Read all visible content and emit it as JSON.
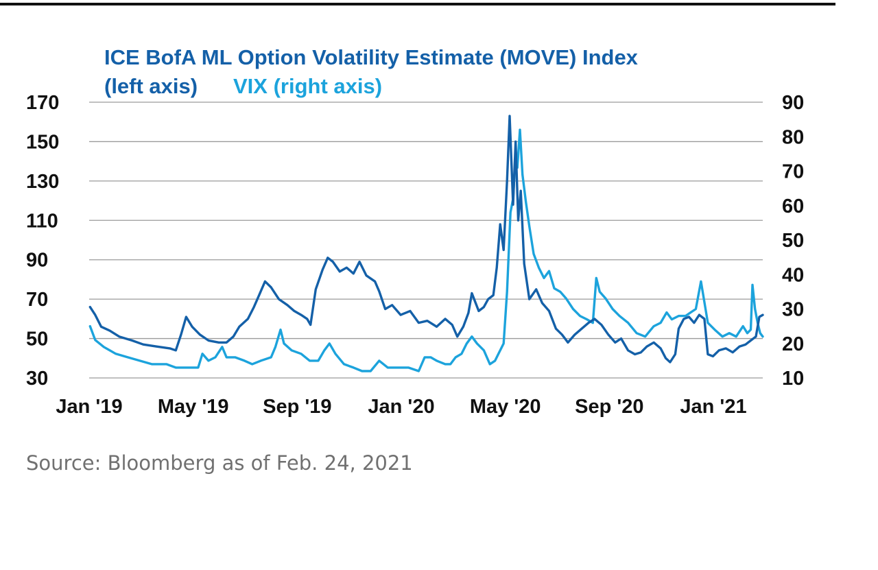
{
  "chart_data": {
    "type": "line",
    "title": "ICE BofA ML Option Volatility Estimate (MOVE) Index",
    "legend": [
      {
        "text": "(left axis)",
        "color": "#1460a8"
      },
      {
        "text": "VIX (right axis)",
        "color": "#1ca3dc"
      }
    ],
    "x_ticks": [
      "Jan '19",
      "May '19",
      "Sep '19",
      "Jan '20",
      "May '20",
      "Sep '20",
      "Jan '21"
    ],
    "y_left": {
      "min": 30,
      "max": 170,
      "ticks": [
        30,
        50,
        70,
        90,
        110,
        130,
        150,
        170
      ]
    },
    "y_right": {
      "min": 10,
      "max": 90,
      "ticks": [
        10,
        20,
        30,
        40,
        50,
        60,
        70,
        80,
        90
      ]
    },
    "grid": true,
    "x_range": [
      "2019-01-01",
      "2021-02-24"
    ],
    "series": [
      {
        "name": "ICE BofA ML Option Volatility Estimate (MOVE) Index",
        "axis": "left",
        "color": "#1460a8",
        "points": [
          [
            "2019-01-02",
            66
          ],
          [
            "2019-01-08",
            62
          ],
          [
            "2019-01-15",
            56
          ],
          [
            "2019-01-25",
            54
          ],
          [
            "2019-02-05",
            51
          ],
          [
            "2019-02-20",
            49
          ],
          [
            "2019-03-05",
            47
          ],
          [
            "2019-03-20",
            46
          ],
          [
            "2019-04-05",
            45
          ],
          [
            "2019-04-12",
            44
          ],
          [
            "2019-04-18",
            52
          ],
          [
            "2019-04-24",
            61
          ],
          [
            "2019-05-01",
            56
          ],
          [
            "2019-05-10",
            52
          ],
          [
            "2019-05-20",
            49
          ],
          [
            "2019-06-01",
            48
          ],
          [
            "2019-06-10",
            48
          ],
          [
            "2019-06-18",
            51
          ],
          [
            "2019-06-25",
            56
          ],
          [
            "2019-07-05",
            60
          ],
          [
            "2019-07-12",
            66
          ],
          [
            "2019-07-18",
            72
          ],
          [
            "2019-07-25",
            79
          ],
          [
            "2019-08-01",
            76
          ],
          [
            "2019-08-10",
            70
          ],
          [
            "2019-08-20",
            67
          ],
          [
            "2019-08-28",
            64
          ],
          [
            "2019-09-05",
            62
          ],
          [
            "2019-09-12",
            60
          ],
          [
            "2019-09-16",
            57
          ],
          [
            "2019-09-22",
            75
          ],
          [
            "2019-09-30",
            85
          ],
          [
            "2019-10-06",
            91
          ],
          [
            "2019-10-12",
            89
          ],
          [
            "2019-10-20",
            84
          ],
          [
            "2019-10-28",
            86
          ],
          [
            "2019-11-05",
            83
          ],
          [
            "2019-11-12",
            89
          ],
          [
            "2019-11-20",
            82
          ],
          [
            "2019-11-30",
            79
          ],
          [
            "2019-12-05",
            74
          ],
          [
            "2019-12-12",
            65
          ],
          [
            "2019-12-20",
            67
          ],
          [
            "2019-12-30",
            62
          ],
          [
            "2020-01-10",
            64
          ],
          [
            "2020-01-20",
            58
          ],
          [
            "2020-01-30",
            59
          ],
          [
            "2020-02-10",
            56
          ],
          [
            "2020-02-20",
            60
          ],
          [
            "2020-02-28",
            57
          ],
          [
            "2020-03-05",
            51
          ],
          [
            "2020-03-12",
            56
          ],
          [
            "2020-03-18",
            63
          ],
          [
            "2020-03-22",
            73
          ],
          [
            "2020-03-30",
            64
          ],
          [
            "2020-04-05",
            66
          ],
          [
            "2020-04-10",
            70
          ],
          [
            "2020-04-16",
            72
          ],
          [
            "2020-04-20",
            86
          ],
          [
            "2020-04-24",
            108
          ],
          [
            "2020-04-28",
            95
          ],
          [
            "2020-05-02",
            130
          ],
          [
            "2020-05-05",
            163
          ],
          [
            "2020-05-09",
            118
          ],
          [
            "2020-05-12",
            150
          ],
          [
            "2020-05-15",
            110
          ],
          [
            "2020-05-18",
            125
          ],
          [
            "2020-05-22",
            88
          ],
          [
            "2020-05-28",
            70
          ],
          [
            "2020-06-05",
            75
          ],
          [
            "2020-06-12",
            68
          ],
          [
            "2020-06-20",
            64
          ],
          [
            "2020-06-28",
            55
          ],
          [
            "2020-07-05",
            52
          ],
          [
            "2020-07-12",
            48
          ],
          [
            "2020-07-20",
            52
          ],
          [
            "2020-07-28",
            55
          ],
          [
            "2020-08-05",
            58
          ],
          [
            "2020-08-12",
            60
          ],
          [
            "2020-08-20",
            57
          ],
          [
            "2020-08-28",
            52
          ],
          [
            "2020-09-05",
            48
          ],
          [
            "2020-09-12",
            50
          ],
          [
            "2020-09-20",
            44
          ],
          [
            "2020-09-28",
            42
          ],
          [
            "2020-10-05",
            43
          ],
          [
            "2020-10-12",
            46
          ],
          [
            "2020-10-20",
            48
          ],
          [
            "2020-10-28",
            45
          ],
          [
            "2020-11-03",
            40
          ],
          [
            "2020-11-08",
            38
          ],
          [
            "2020-11-14",
            42
          ],
          [
            "2020-11-18",
            55
          ],
          [
            "2020-11-24",
            60
          ],
          [
            "2020-11-30",
            61
          ],
          [
            "2020-12-06",
            58
          ],
          [
            "2020-12-12",
            62
          ],
          [
            "2020-12-18",
            60
          ],
          [
            "2020-12-22",
            42
          ],
          [
            "2020-12-28",
            41
          ],
          [
            "2021-01-04",
            44
          ],
          [
            "2021-01-12",
            45
          ],
          [
            "2021-01-20",
            43
          ],
          [
            "2021-01-28",
            46
          ],
          [
            "2021-02-04",
            47
          ],
          [
            "2021-02-10",
            49
          ],
          [
            "2021-02-16",
            51
          ],
          [
            "2021-02-20",
            61
          ],
          [
            "2021-02-24",
            62
          ]
        ]
      },
      {
        "name": "VIX",
        "axis": "right",
        "color": "#1ca3dc",
        "points": [
          [
            "2019-01-02",
            25
          ],
          [
            "2019-01-08",
            21
          ],
          [
            "2019-01-18",
            19
          ],
          [
            "2019-02-01",
            17
          ],
          [
            "2019-02-15",
            16
          ],
          [
            "2019-03-01",
            15
          ],
          [
            "2019-03-15",
            14
          ],
          [
            "2019-04-01",
            14
          ],
          [
            "2019-04-12",
            13
          ],
          [
            "2019-04-25",
            13
          ],
          [
            "2019-05-08",
            13
          ],
          [
            "2019-05-13",
            17
          ],
          [
            "2019-05-20",
            15
          ],
          [
            "2019-05-28",
            16
          ],
          [
            "2019-06-05",
            19
          ],
          [
            "2019-06-10",
            16
          ],
          [
            "2019-06-20",
            16
          ],
          [
            "2019-07-01",
            15
          ],
          [
            "2019-07-10",
            14
          ],
          [
            "2019-07-20",
            15
          ],
          [
            "2019-08-01",
            16
          ],
          [
            "2019-08-06",
            19
          ],
          [
            "2019-08-12",
            24
          ],
          [
            "2019-08-16",
            20
          ],
          [
            "2019-08-25",
            18
          ],
          [
            "2019-09-05",
            17
          ],
          [
            "2019-09-15",
            15
          ],
          [
            "2019-09-25",
            15
          ],
          [
            "2019-10-02",
            18
          ],
          [
            "2019-10-08",
            20
          ],
          [
            "2019-10-15",
            17
          ],
          [
            "2019-10-25",
            14
          ],
          [
            "2019-11-05",
            13
          ],
          [
            "2019-11-15",
            12
          ],
          [
            "2019-11-25",
            12
          ],
          [
            "2019-12-05",
            15
          ],
          [
            "2019-12-15",
            13
          ],
          [
            "2019-12-28",
            13
          ],
          [
            "2020-01-08",
            13
          ],
          [
            "2020-01-20",
            12
          ],
          [
            "2020-01-27",
            16
          ],
          [
            "2020-02-03",
            16
          ],
          [
            "2020-02-10",
            15
          ],
          [
            "2020-02-20",
            14
          ],
          [
            "2020-02-26",
            14
          ],
          [
            "2020-03-03",
            16
          ],
          [
            "2020-03-10",
            17
          ],
          [
            "2020-03-16",
            20
          ],
          [
            "2020-03-22",
            22
          ],
          [
            "2020-03-28",
            20
          ],
          [
            "2020-04-05",
            18
          ],
          [
            "2020-04-12",
            14
          ],
          [
            "2020-04-18",
            15
          ],
          [
            "2020-04-22",
            17
          ],
          [
            "2020-04-28",
            20
          ],
          [
            "2020-05-02",
            35
          ],
          [
            "2020-05-06",
            58
          ],
          [
            "2020-05-09",
            62
          ],
          [
            "2020-05-12",
            75
          ],
          [
            "2020-05-14",
            71
          ],
          [
            "2020-05-17",
            82
          ],
          [
            "2020-05-20",
            69
          ],
          [
            "2020-05-24",
            61
          ],
          [
            "2020-05-28",
            54
          ],
          [
            "2020-06-02",
            46
          ],
          [
            "2020-06-08",
            42
          ],
          [
            "2020-06-14",
            39
          ],
          [
            "2020-06-20",
            41
          ],
          [
            "2020-06-26",
            36
          ],
          [
            "2020-07-03",
            35
          ],
          [
            "2020-07-10",
            33
          ],
          [
            "2020-07-18",
            30
          ],
          [
            "2020-07-26",
            28
          ],
          [
            "2020-08-03",
            27
          ],
          [
            "2020-08-10",
            26
          ],
          [
            "2020-08-14",
            39
          ],
          [
            "2020-08-18",
            35
          ],
          [
            "2020-08-25",
            33
          ],
          [
            "2020-09-02",
            30
          ],
          [
            "2020-09-10",
            28
          ],
          [
            "2020-09-20",
            26
          ],
          [
            "2020-09-30",
            23
          ],
          [
            "2020-10-10",
            22
          ],
          [
            "2020-10-20",
            25
          ],
          [
            "2020-10-28",
            26
          ],
          [
            "2020-11-04",
            29
          ],
          [
            "2020-11-10",
            27
          ],
          [
            "2020-11-18",
            28
          ],
          [
            "2020-11-26",
            28
          ],
          [
            "2020-12-02",
            29
          ],
          [
            "2020-12-08",
            30
          ],
          [
            "2020-12-14",
            38
          ],
          [
            "2020-12-18",
            32
          ],
          [
            "2020-12-22",
            26
          ],
          [
            "2020-12-30",
            24
          ],
          [
            "2021-01-08",
            22
          ],
          [
            "2021-01-16",
            23
          ],
          [
            "2021-01-24",
            22
          ],
          [
            "2021-02-01",
            25
          ],
          [
            "2021-02-06",
            23
          ],
          [
            "2021-02-10",
            24
          ],
          [
            "2021-02-12",
            37
          ],
          [
            "2021-02-15",
            30
          ],
          [
            "2021-02-18",
            26
          ],
          [
            "2021-02-21",
            23
          ],
          [
            "2021-02-24",
            22
          ]
        ]
      }
    ]
  },
  "source": "Source: Bloomberg as of Feb. 24, 2021"
}
